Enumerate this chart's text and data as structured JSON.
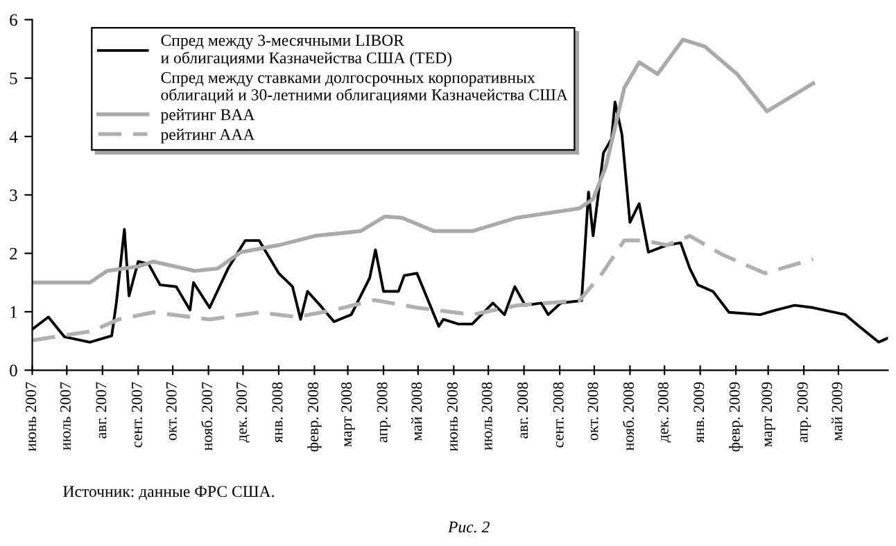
{
  "chart_data": {
    "type": "line",
    "legend_title": "Спред между ставками долгосрочных корпоративных\nоблигаций и 30-летними облигациями Казначейства США",
    "xlim": [
      "2007-06-01",
      "2009-06-13"
    ],
    "xticks": [
      {
        "value": "2007-06-01",
        "label": "июнь 2007"
      },
      {
        "value": "2007-07-01",
        "label": "июль 2007"
      },
      {
        "value": "2007-08-01",
        "label": "авг. 2007"
      },
      {
        "value": "2007-09-01",
        "label": "сент. 2007"
      },
      {
        "value": "2007-10-01",
        "label": "окт. 2007"
      },
      {
        "value": "2007-11-01",
        "label": "нояб. 2007"
      },
      {
        "value": "2007-12-01",
        "label": "дек. 2007"
      },
      {
        "value": "2008-01-01",
        "label": "янв. 2008"
      },
      {
        "value": "2008-02-01",
        "label": "февр. 2008"
      },
      {
        "value": "2008-03-01",
        "label": "март 2008"
      },
      {
        "value": "2008-04-01",
        "label": "апр. 2008"
      },
      {
        "value": "2008-05-01",
        "label": "май 2008"
      },
      {
        "value": "2008-06-01",
        "label": "июнь 2008"
      },
      {
        "value": "2008-07-01",
        "label": "июль 2008"
      },
      {
        "value": "2008-08-01",
        "label": "авг. 2008"
      },
      {
        "value": "2008-09-01",
        "label": "сент. 2008"
      },
      {
        "value": "2008-10-01",
        "label": "окт. 2008"
      },
      {
        "value": "2008-11-01",
        "label": "нояб. 2008"
      },
      {
        "value": "2008-12-01",
        "label": "дек. 2008"
      },
      {
        "value": "2009-01-01",
        "label": "янв. 2009"
      },
      {
        "value": "2009-02-01",
        "label": "февр. 2009"
      },
      {
        "value": "2009-03-01",
        "label": "март 2009"
      },
      {
        "value": "2009-04-01",
        "label": "апр. 2009"
      },
      {
        "value": "2009-05-01",
        "label": "май 2009"
      }
    ],
    "ylim": [
      0,
      6
    ],
    "yticks": [
      0,
      1,
      2,
      3,
      4,
      5,
      6
    ],
    "grid": false,
    "legend": "top left",
    "series": [
      {
        "name": "Спред между 3-месячными LIBOR\nи облигациями Казначейства США (TED)",
        "color": "#000000",
        "line_style": "solid",
        "x": [
          "2007-06-01",
          "2007-06-15",
          "2007-06-29",
          "2007-07-21",
          "2007-08-09",
          "2007-08-13",
          "2007-08-20",
          "2007-08-24",
          "2007-09-01",
          "2007-09-10",
          "2007-09-20",
          "2007-10-04",
          "2007-10-16",
          "2007-10-19",
          "2007-11-02",
          "2007-11-18",
          "2007-12-03",
          "2007-12-15",
          "2008-01-01",
          "2008-01-13",
          "2008-01-20",
          "2008-01-26",
          "2008-02-06",
          "2008-02-18",
          "2008-03-04",
          "2008-03-20",
          "2008-03-25",
          "2008-04-01",
          "2008-04-14",
          "2008-04-19",
          "2008-04-30",
          "2008-05-19",
          "2008-05-23",
          "2008-06-05",
          "2008-06-17",
          "2008-07-05",
          "2008-07-15",
          "2008-07-24",
          "2008-08-02",
          "2008-08-16",
          "2008-08-22",
          "2008-09-02",
          "2008-09-20",
          "2008-09-26",
          "2008-09-30",
          "2008-10-09",
          "2008-10-16",
          "2008-10-19",
          "2008-10-25",
          "2008-11-01",
          "2008-11-09",
          "2008-11-17",
          "2008-12-03",
          "2008-12-15",
          "2008-12-23",
          "2008-12-30",
          "2009-01-12",
          "2009-01-26",
          "2009-02-22",
          "2009-03-08",
          "2009-03-24",
          "2009-04-09",
          "2009-05-07",
          "2009-05-19",
          "2009-06-05",
          "2009-06-13"
        ],
        "values": [
          0.7,
          0.91,
          0.57,
          0.48,
          0.59,
          1.15,
          2.41,
          1.27,
          1.86,
          1.82,
          1.46,
          1.43,
          1.03,
          1.5,
          1.07,
          1.74,
          2.22,
          2.22,
          1.66,
          1.43,
          0.87,
          1.35,
          1.11,
          0.83,
          0.95,
          1.58,
          2.06,
          1.35,
          1.35,
          1.62,
          1.66,
          0.75,
          0.87,
          0.79,
          0.79,
          1.15,
          0.95,
          1.43,
          1.11,
          1.15,
          0.95,
          1.15,
          1.19,
          3.05,
          2.3,
          3.72,
          3.96,
          4.59,
          4.04,
          2.53,
          2.85,
          2.02,
          2.14,
          2.18,
          1.74,
          1.46,
          1.35,
          0.99,
          0.95,
          1.03,
          1.11,
          1.07,
          0.95,
          0.75,
          0.48,
          0.55
        ]
      },
      {
        "name": "рейтинг BAA",
        "color": "#aaaaaa",
        "line_style": "solid",
        "x": [
          "2007-06-01",
          "2007-07-21",
          "2007-08-05",
          "2007-09-02",
          "2007-09-14",
          "2007-10-20",
          "2007-11-09",
          "2007-11-29",
          "2008-01-01",
          "2008-02-02",
          "2008-03-12",
          "2008-04-02",
          "2008-04-17",
          "2008-05-15",
          "2008-06-17",
          "2008-07-26",
          "2008-09-18",
          "2008-09-30",
          "2008-10-11",
          "2008-10-27",
          "2008-11-09",
          "2008-11-25",
          "2008-12-17",
          "2009-01-05",
          "2009-02-02",
          "2009-02-28",
          "2009-04-09"
        ],
        "values": [
          1.5,
          1.5,
          1.7,
          1.78,
          1.86,
          1.7,
          1.74,
          2.02,
          2.14,
          2.3,
          2.38,
          2.63,
          2.61,
          2.38,
          2.38,
          2.61,
          2.77,
          2.93,
          3.48,
          4.83,
          5.27,
          5.07,
          5.66,
          5.54,
          5.07,
          4.43,
          4.91
        ]
      },
      {
        "name": "рейтинг AAA",
        "color": "#b0b0b0",
        "line_style": "dashed",
        "x": [
          "2007-06-01",
          "2007-07-23",
          "2007-08-15",
          "2007-09-14",
          "2007-11-02",
          "2007-12-15",
          "2008-01-17",
          "2008-02-18",
          "2008-03-24",
          "2008-04-30",
          "2008-06-17",
          "2008-07-26",
          "2008-09-18",
          "2008-10-08",
          "2008-10-27",
          "2008-11-13",
          "2008-12-03",
          "2008-12-23",
          "2009-01-20",
          "2009-02-26",
          "2009-04-09"
        ],
        "values": [
          0.51,
          0.67,
          0.87,
          0.99,
          0.87,
          0.99,
          0.91,
          1.03,
          1.2,
          1.07,
          0.95,
          1.11,
          1.19,
          1.66,
          2.22,
          2.22,
          2.14,
          2.3,
          1.98,
          1.66,
          1.9
        ]
      }
    ],
    "annotations": [
      "Источник: данные ФРС США.",
      "Рис. 2"
    ]
  }
}
